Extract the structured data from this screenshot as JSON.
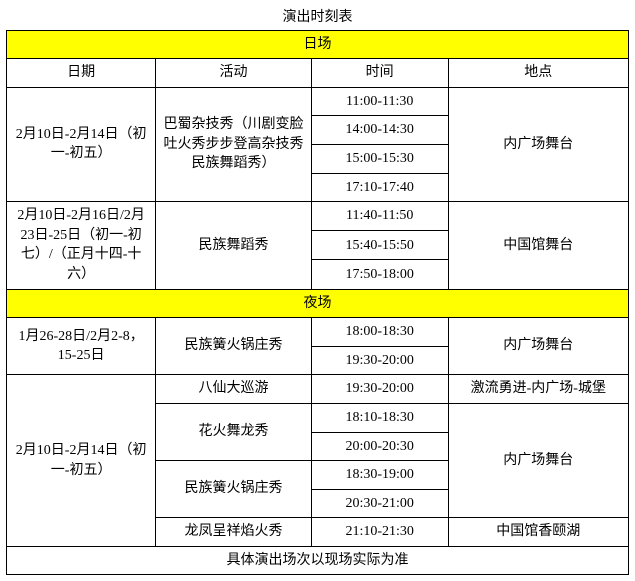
{
  "title": "演出时刻表",
  "footer": "具体演出场次以现场实际为准",
  "sections": {
    "day": "日场",
    "night": "夜场"
  },
  "headers": {
    "date": "日期",
    "activity": "活动",
    "time": "时间",
    "place": "地点"
  },
  "colors": {
    "section_bg": "#ffff00",
    "border": "#000000",
    "bg": "#ffffff"
  },
  "day_rows": [
    {
      "date": "2月10日-2月14日（初一-初五）",
      "activity": "巴蜀杂技秀（川剧变脸吐火秀步步登高杂技秀民族舞蹈秀）",
      "times": [
        "11:00-11:30",
        "14:00-14:30",
        "15:00-15:30",
        "17:10-17:40"
      ],
      "place": "内广场舞台"
    },
    {
      "date": "2月10日-2月16日/2月23日-25日（初一-初七）/（正月十四-十六）",
      "activity": "民族舞蹈秀",
      "times": [
        "11:40-11:50",
        "15:40-15:50",
        "17:50-18:00"
      ],
      "place": "中国馆舞台"
    }
  ],
  "night_rows": [
    {
      "date": "1月26-28日/2月2-8，15-25日",
      "activity": "民族簧火锅庄秀",
      "times": [
        "18:00-18:30",
        "19:30-20:00"
      ],
      "place": "内广场舞台"
    },
    {
      "date": "2月10日-2月14日（初一-初五）",
      "groups": [
        {
          "activity": "八仙大巡游",
          "times": [
            "19:30-20:00"
          ],
          "place": "激流勇进-内广场-城堡"
        },
        {
          "activity": "花火舞龙秀",
          "times": [
            "18:10-18:30",
            "20:00-20:30"
          ],
          "place": "内广场舞台",
          "place_rowspan": 4
        },
        {
          "activity": "民族簧火锅庄秀",
          "times": [
            "18:30-19:00",
            "20:30-21:00"
          ]
        },
        {
          "activity": "龙凤呈祥焰火秀",
          "times": [
            "21:10-21:30"
          ],
          "place": "中国馆香颐湖"
        }
      ]
    }
  ]
}
